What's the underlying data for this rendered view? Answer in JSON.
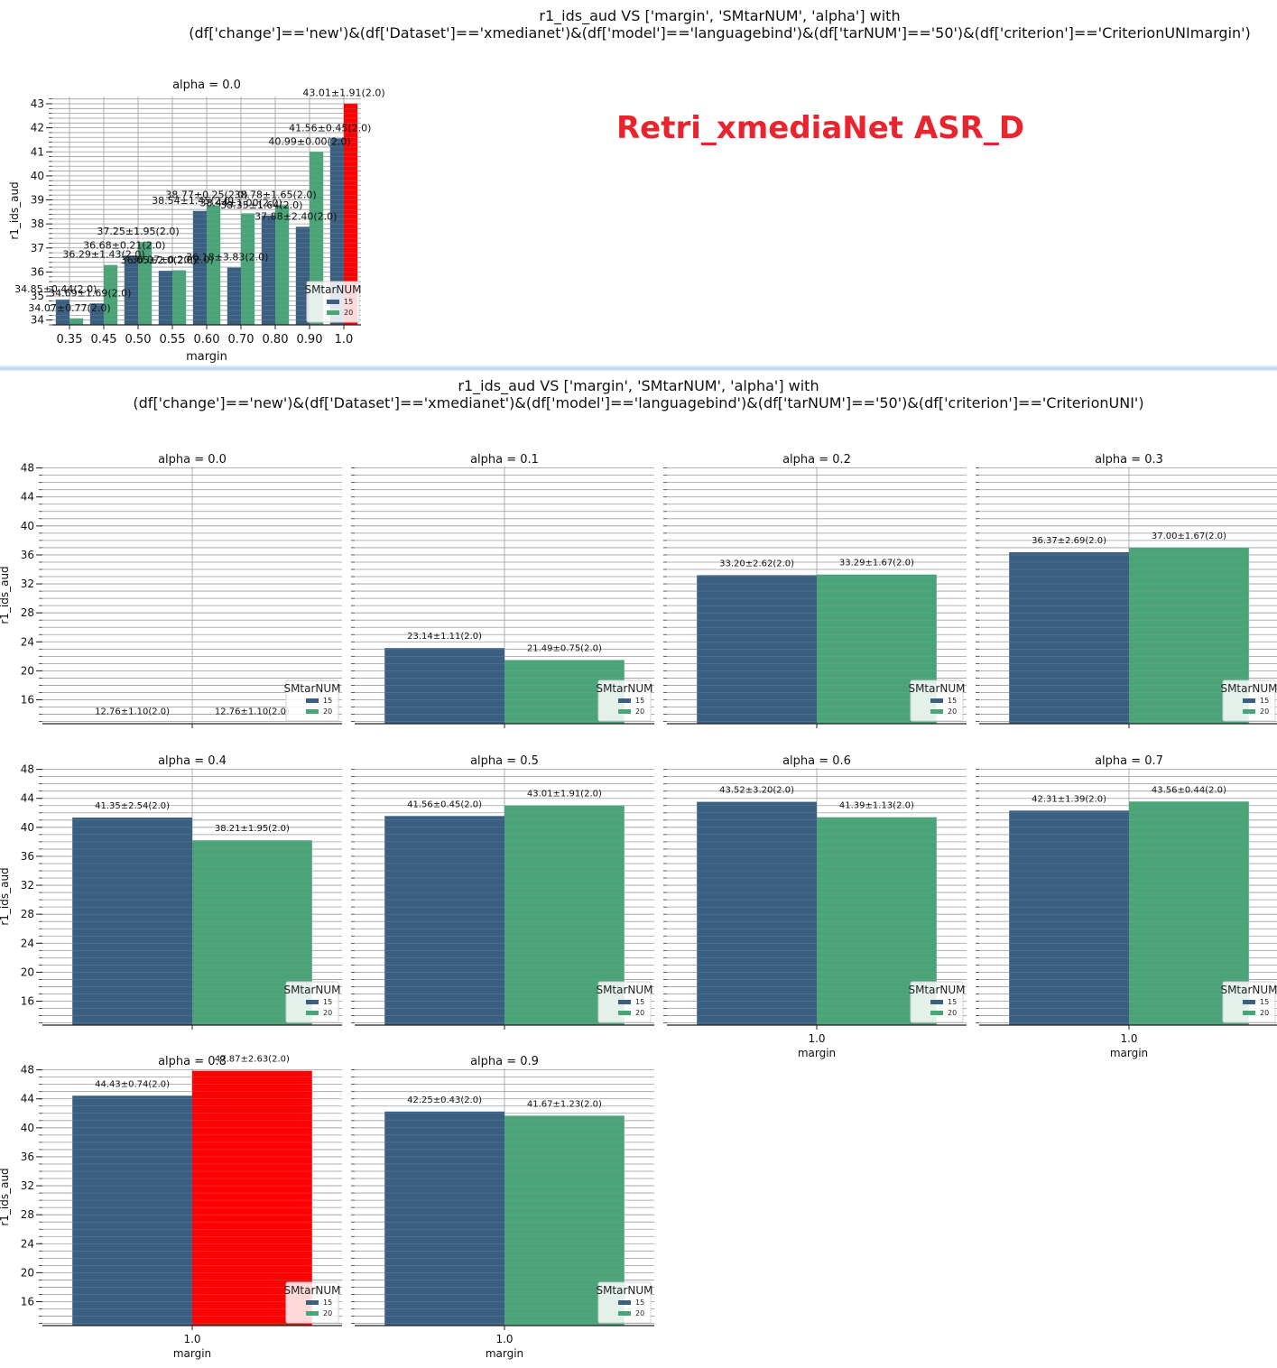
{
  "overlay_label": "Retri_xmediaNet  ASR_D",
  "colors": {
    "s15": "#3b5f80",
    "s20": "#4aa477",
    "highlight": "#ff0000"
  },
  "chart_data": [
    {
      "type": "bar",
      "title": "r1_ids_aud VS ['margin', 'SMtarNUM', 'alpha'] with\n(df['change']=='new')&(df['Dataset']=='xmedianet')&(df['model']=='languagebind')&(df['tarNUM']=='50')&(df['criterion']=='CriterionUNImargin')",
      "panels": [
        {
          "subtitle": "alpha = 0.0",
          "xlabel": "margin",
          "ylabel": "r1_ids_aud",
          "ylim": [
            33.8,
            43.3
          ],
          "yticks": [
            34,
            35,
            36,
            37,
            38,
            39,
            40,
            41,
            42,
            43
          ],
          "categories": [
            "0.35",
            "0.45",
            "0.50",
            "0.55",
            "0.60",
            "0.70",
            "0.80",
            "0.90",
            "1.0"
          ],
          "legend": {
            "title": "SMtarNUM",
            "entries": [
              "15",
              "20"
            ],
            "position": "bottom-right"
          },
          "series": [
            {
              "name": "15",
              "values": [
                34.85,
                34.69,
                36.68,
                36.05,
                38.54,
                36.18,
                38.35,
                37.88,
                41.56
              ],
              "labels": [
                "34.85±0.44(2.0)",
                "34.69±1.69(2.0)",
                "36.68±0.21(2.0)",
                "36.05±2.0(2.0)",
                "38.54±1.45(2.0)",
                "36.18±3.83(2.0)",
                "38.35±1.64(2.0)",
                "37.88±2.40(2.0)",
                "41.56±0.45(2.0)"
              ]
            },
            {
              "name": "20",
              "values": [
                34.07,
                36.29,
                37.25,
                36.07,
                38.77,
                38.44,
                38.78,
                40.99,
                43.01
              ],
              "labels": [
                "34.07±0.77(2.0)",
                "36.29±1.43(2.0)",
                "37.25±1.95(2.0)",
                "36.07±0.20(2.0)",
                "38.77±0.25(2.0)",
                "38.44±1.00(2.0)",
                "38.78±1.65(2.0)",
                "40.99±0.00(2.0)",
                "43.01±1.91(2.0)"
              ]
            }
          ]
        }
      ]
    },
    {
      "type": "bar",
      "title": "r1_ids_aud VS ['margin', 'SMtarNUM', 'alpha'] with\n(df['change']=='new')&(df['Dataset']=='xmedianet')&(df['model']=='languagebind')&(df['tarNUM']=='50')&(df['criterion']=='CriterionUNI')",
      "xlabel": "margin",
      "ylabel": "r1_ids_aud",
      "ylim": [
        12.7,
        48.2
      ],
      "yticks": [
        16,
        20,
        24,
        28,
        32,
        36,
        40,
        44,
        48
      ],
      "category": "1.0",
      "legend": {
        "title": "SMtarNUM",
        "entries": [
          "15",
          "20"
        ],
        "position": "bottom-right"
      },
      "panels": [
        {
          "subtitle": "alpha = 0.0",
          "values": [
            12.76,
            12.76
          ],
          "labels": [
            "12.76±1.10(2.0)",
            "12.76±1.10(2.0)"
          ]
        },
        {
          "subtitle": "alpha = 0.1",
          "values": [
            23.14,
            21.49
          ],
          "labels": [
            "23.14±1.11(2.0)",
            "21.49±0.75(2.0)"
          ]
        },
        {
          "subtitle": "alpha = 0.2",
          "values": [
            33.2,
            33.29
          ],
          "labels": [
            "33.20±2.62(2.0)",
            "33.29±1.67(2.0)"
          ]
        },
        {
          "subtitle": "alpha = 0.3",
          "values": [
            36.37,
            37.0
          ],
          "labels": [
            "36.37±2.69(2.0)",
            "37.00±1.67(2.0)"
          ]
        },
        {
          "subtitle": "alpha = 0.4",
          "values": [
            41.35,
            38.21
          ],
          "labels": [
            "41.35±2.54(2.0)",
            "38.21±1.95(2.0)"
          ]
        },
        {
          "subtitle": "alpha = 0.5",
          "values": [
            41.56,
            43.01
          ],
          "labels": [
            "41.56±0.45(2.0)",
            "43.01±1.91(2.0)"
          ]
        },
        {
          "subtitle": "alpha = 0.6",
          "values": [
            43.52,
            41.39
          ],
          "labels": [
            "43.52±3.20(2.0)",
            "41.39±1.13(2.0)"
          ]
        },
        {
          "subtitle": "alpha = 0.7",
          "values": [
            42.31,
            43.56
          ],
          "labels": [
            "42.31±1.39(2.0)",
            "43.56±0.44(2.0)"
          ]
        },
        {
          "subtitle": "alpha = 0.8",
          "values": [
            44.43,
            47.87
          ],
          "labels": [
            "44.43±0.74(2.0)",
            "47.87±2.63(2.0)"
          ]
        },
        {
          "subtitle": "alpha = 0.9",
          "values": [
            42.25,
            41.67
          ],
          "labels": [
            "42.25±0.43(2.0)",
            "41.67±1.23(2.0)"
          ]
        }
      ]
    }
  ]
}
